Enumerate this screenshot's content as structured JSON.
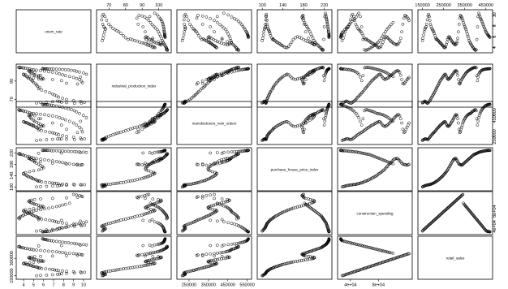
{
  "chart_data": {
    "type": "scatter",
    "title": "",
    "variables": [
      {
        "name": "unem_rate",
        "range": [
          3.5,
          10.5
        ],
        "ticks": [
          4,
          5,
          6,
          7,
          8,
          9,
          10
        ],
        "tick_labels": [
          "4",
          "5",
          "6",
          "7",
          "8",
          "9",
          "10"
        ],
        "tick_labels_right": [
          "4",
          "6",
          "8",
          "10"
        ]
      },
      {
        "name": "industrial_production_index",
        "range": [
          64,
          106
        ],
        "ticks": [
          70,
          80,
          90,
          100
        ],
        "tick_labels": [
          "70",
          "80",
          "90",
          "100"
        ],
        "tick_labels_left": [
          "70",
          "90"
        ]
      },
      {
        "name": "manufacturers_new_orders",
        "range": [
          200000,
          560000
        ],
        "ticks": [
          250000,
          350000,
          450000,
          550000
        ],
        "tick_labels": [
          "250000",
          "350000",
          "450000",
          "550000"
        ],
        "tick_labels_right": [
          "250000",
          "450000"
        ]
      },
      {
        "name": "purchase_house_price_index",
        "range": [
          95,
          230
        ],
        "ticks": [
          100,
          140,
          180,
          220
        ],
        "tick_labels": [
          "100",
          "140",
          "180",
          "220"
        ],
        "tick_labels_left": [
          "100",
          "140",
          "180",
          "220"
        ]
      },
      {
        "name": "construction_spending",
        "range": [
          25000,
          125000
        ],
        "ticks": [
          40000,
          80000
        ],
        "tick_labels": [
          "4e+04",
          "8e+04"
        ],
        "tick_labels_right": [
          "4e+04",
          "8e+04"
        ]
      },
      {
        "name": "retail_sales",
        "range": [
          140000,
          470000
        ],
        "ticks": [
          150000,
          250000,
          350000,
          450000
        ],
        "tick_labels": [
          "150000",
          "250000",
          "350000",
          "450000"
        ],
        "tick_labels_left": [
          "150000",
          "300000"
        ]
      }
    ],
    "observations": {
      "unem_rate": [
        5.3,
        5.7,
        6.3,
        6.9,
        7.4,
        7.6,
        7.8,
        8.3,
        9.1,
        9.8,
        10.1,
        9.7,
        9.0,
        8.3,
        7.9,
        7.5,
        7.3,
        7.1,
        6.9,
        6.6,
        6.2,
        5.8,
        5.5,
        5.6,
        5.4,
        5.3,
        5.2,
        5.0,
        4.9,
        4.8,
        4.7,
        4.5,
        4.4,
        4.3,
        4.1,
        4.0,
        4.0,
        4.2,
        4.6,
        5.0,
        5.5,
        5.8,
        6.0,
        5.9,
        5.7,
        5.5,
        5.3,
        5.1,
        5.0,
        4.8,
        4.7,
        4.6,
        4.5,
        4.6,
        4.8,
        5.1,
        5.7,
        6.9,
        8.3,
        9.4,
        9.9,
        9.8,
        9.6,
        9.3,
        9.0,
        8.6,
        8.2,
        7.9,
        7.6,
        7.3,
        6.9,
        6.5,
        6.1,
        5.7,
        5.3,
        5.0,
        4.8,
        4.6,
        4.4,
        4.2,
        4.0,
        3.9,
        3.7,
        3.6,
        3.5,
        3.6,
        5.5,
        7.8,
        9.7,
        10.3,
        10.0,
        9.6,
        9.3,
        9.1,
        8.8,
        8.5,
        8.2,
        7.9,
        7.6,
        7.3,
        7.0,
        6.8,
        6.6,
        6.4,
        6.3,
        6.2,
        6.1,
        6.0,
        5.9,
        5.9
      ],
      "industrial_production_index": [
        66.0,
        66.5,
        66.8,
        67.3,
        68.0,
        67.5,
        66.9,
        66.2,
        65.6,
        65.9,
        66.7,
        67.6,
        68.6,
        69.8,
        71.1,
        72.4,
        73.6,
        74.8,
        75.9,
        77.2,
        78.6,
        80.1,
        81.6,
        82.9,
        84.2,
        85.6,
        87.0,
        88.5,
        89.9,
        91.0,
        92.1,
        93.0,
        94.0,
        95.0,
        96.1,
        97.1,
        97.6,
        96.9,
        95.3,
        93.6,
        92.4,
        91.9,
        92.3,
        93.0,
        93.7,
        94.6,
        95.6,
        96.6,
        97.5,
        98.5,
        99.6,
        100.5,
        101.2,
        101.6,
        101.0,
        99.6,
        96.4,
        91.8,
        87.6,
        86.8,
        88.1,
        90.0,
        91.6,
        92.9,
        94.0,
        95.0,
        96.0,
        97.0,
        98.0,
        99.0,
        99.8,
        100.4,
        101.0,
        101.6,
        102.1,
        102.5,
        102.9,
        103.3,
        103.7,
        104.1,
        104.5,
        104.7,
        104.9,
        105.0,
        105.2,
        104.6,
        96.0,
        90.5,
        94.5,
        97.5,
        99.0,
        100.0,
        100.8,
        101.4,
        101.9,
        102.3,
        102.6,
        102.8,
        103.0,
        103.1,
        103.2,
        103.3,
        103.4,
        103.5,
        103.5,
        103.6,
        103.6,
        103.7,
        103.7,
        103.8
      ],
      "manufacturers_new_orders": [
        215000,
        219000,
        223000,
        226000,
        230000,
        231000,
        229000,
        226000,
        224000,
        226000,
        231000,
        238000,
        246000,
        254000,
        262000,
        270000,
        276000,
        282000,
        288000,
        294000,
        300000,
        308000,
        316000,
        324000,
        330000,
        336000,
        342000,
        350000,
        356000,
        362000,
        366000,
        372000,
        378000,
        384000,
        388000,
        392000,
        392000,
        384000,
        370000,
        357000,
        350000,
        348000,
        352000,
        358000,
        366000,
        376000,
        386000,
        396000,
        406000,
        418000,
        430000,
        440000,
        450000,
        458000,
        458000,
        448000,
        420000,
        380000,
        320000,
        290000,
        296000,
        320000,
        340000,
        360000,
        380000,
        396000,
        410000,
        420000,
        430000,
        440000,
        446000,
        452000,
        458000,
        462000,
        466000,
        468000,
        470000,
        476000,
        482000,
        488000,
        492000,
        496000,
        500000,
        504000,
        506000,
        496000,
        420000,
        360000,
        396000,
        430000,
        452000,
        470000,
        484000,
        496000,
        506000,
        514000,
        522000,
        528000,
        534000,
        540000,
        544000,
        548000,
        550000,
        552000,
        553000,
        554000,
        555000,
        555000,
        556000,
        556000
      ],
      "purchase_house_price_index": [
        100,
        101,
        102,
        103,
        104,
        105,
        106,
        106,
        107,
        107,
        108,
        108,
        109,
        109,
        110,
        111,
        112,
        113,
        114,
        115,
        116,
        118,
        120,
        121,
        122,
        124,
        126,
        128,
        130,
        132,
        134,
        136,
        138,
        140,
        143,
        146,
        148,
        151,
        154,
        157,
        160,
        164,
        168,
        172,
        176,
        180,
        184,
        188,
        192,
        196,
        198,
        200,
        201,
        200,
        197,
        193,
        189,
        184,
        181,
        180,
        179,
        178,
        177,
        178,
        180,
        182,
        184,
        186,
        188,
        190,
        192,
        194,
        196,
        198,
        200,
        202,
        204,
        206,
        208,
        210,
        212,
        214,
        215,
        216,
        217,
        218,
        219,
        220,
        221,
        222,
        223,
        224,
        224,
        225,
        225,
        226,
        226,
        227,
        227,
        228,
        228,
        228,
        229,
        229,
        229,
        229,
        229,
        229,
        229,
        229
      ],
      "construction_spending": [
        28000,
        29500,
        31000,
        32500,
        34000,
        35500,
        37000,
        38500,
        40000,
        41500,
        43000,
        44500,
        46000,
        47500,
        49000,
        50500,
        52000,
        53500,
        55000,
        56500,
        58000,
        59500,
        61000,
        62500,
        64000,
        65500,
        67000,
        68500,
        70000,
        71500,
        73000,
        74500,
        76000,
        77500,
        79000,
        80500,
        82000,
        83500,
        85000,
        86500,
        88000,
        89500,
        91000,
        92500,
        94000,
        95500,
        97000,
        98500,
        100000,
        101500,
        103000,
        104500,
        106000,
        107500,
        109000,
        110500,
        112000,
        113500,
        115000,
        116500,
        118000,
        119500,
        121000,
        122500,
        124000,
        101000,
        98000,
        96000,
        94000,
        92000,
        90000,
        88000,
        86000,
        84000,
        82000,
        80000,
        78000,
        76000,
        74000,
        72000,
        70000,
        68000,
        66000,
        64000,
        62000,
        60000,
        58000,
        56000,
        54000,
        52000,
        50000,
        48000,
        46000,
        44000,
        42000,
        40000,
        38000,
        36000,
        34000,
        32000,
        30000,
        28500,
        27500,
        27000,
        26800,
        26600,
        26400,
        26200,
        26100,
        26000
      ],
      "retail_sales": [
        150000,
        152000,
        155000,
        158000,
        161000,
        164000,
        167000,
        170000,
        173000,
        176000,
        179000,
        182000,
        185000,
        188000,
        191000,
        194000,
        197000,
        200000,
        203000,
        206000,
        209000,
        212000,
        215000,
        218000,
        221000,
        224000,
        227000,
        230000,
        233000,
        236000,
        239000,
        242000,
        245000,
        248000,
        251000,
        254000,
        257000,
        260000,
        263000,
        266000,
        269000,
        272000,
        275000,
        278000,
        281000,
        284000,
        287000,
        290000,
        293000,
        296000,
        299000,
        302000,
        305000,
        308000,
        311000,
        314000,
        317000,
        320000,
        323000,
        326000,
        329000,
        332000,
        335000,
        338000,
        341000,
        344000,
        347000,
        350000,
        353000,
        356000,
        359000,
        362000,
        365000,
        368000,
        371000,
        374000,
        377000,
        380000,
        383000,
        386000,
        389000,
        392000,
        395000,
        398000,
        401000,
        404000,
        407000,
        410000,
        413000,
        416000,
        419000,
        422000,
        425000,
        428000,
        431000,
        434000,
        437000,
        440000,
        443000,
        446000,
        449000,
        452000,
        455000,
        458000,
        460000,
        462000,
        464000,
        466000,
        468000,
        469000
      ]
    }
  }
}
